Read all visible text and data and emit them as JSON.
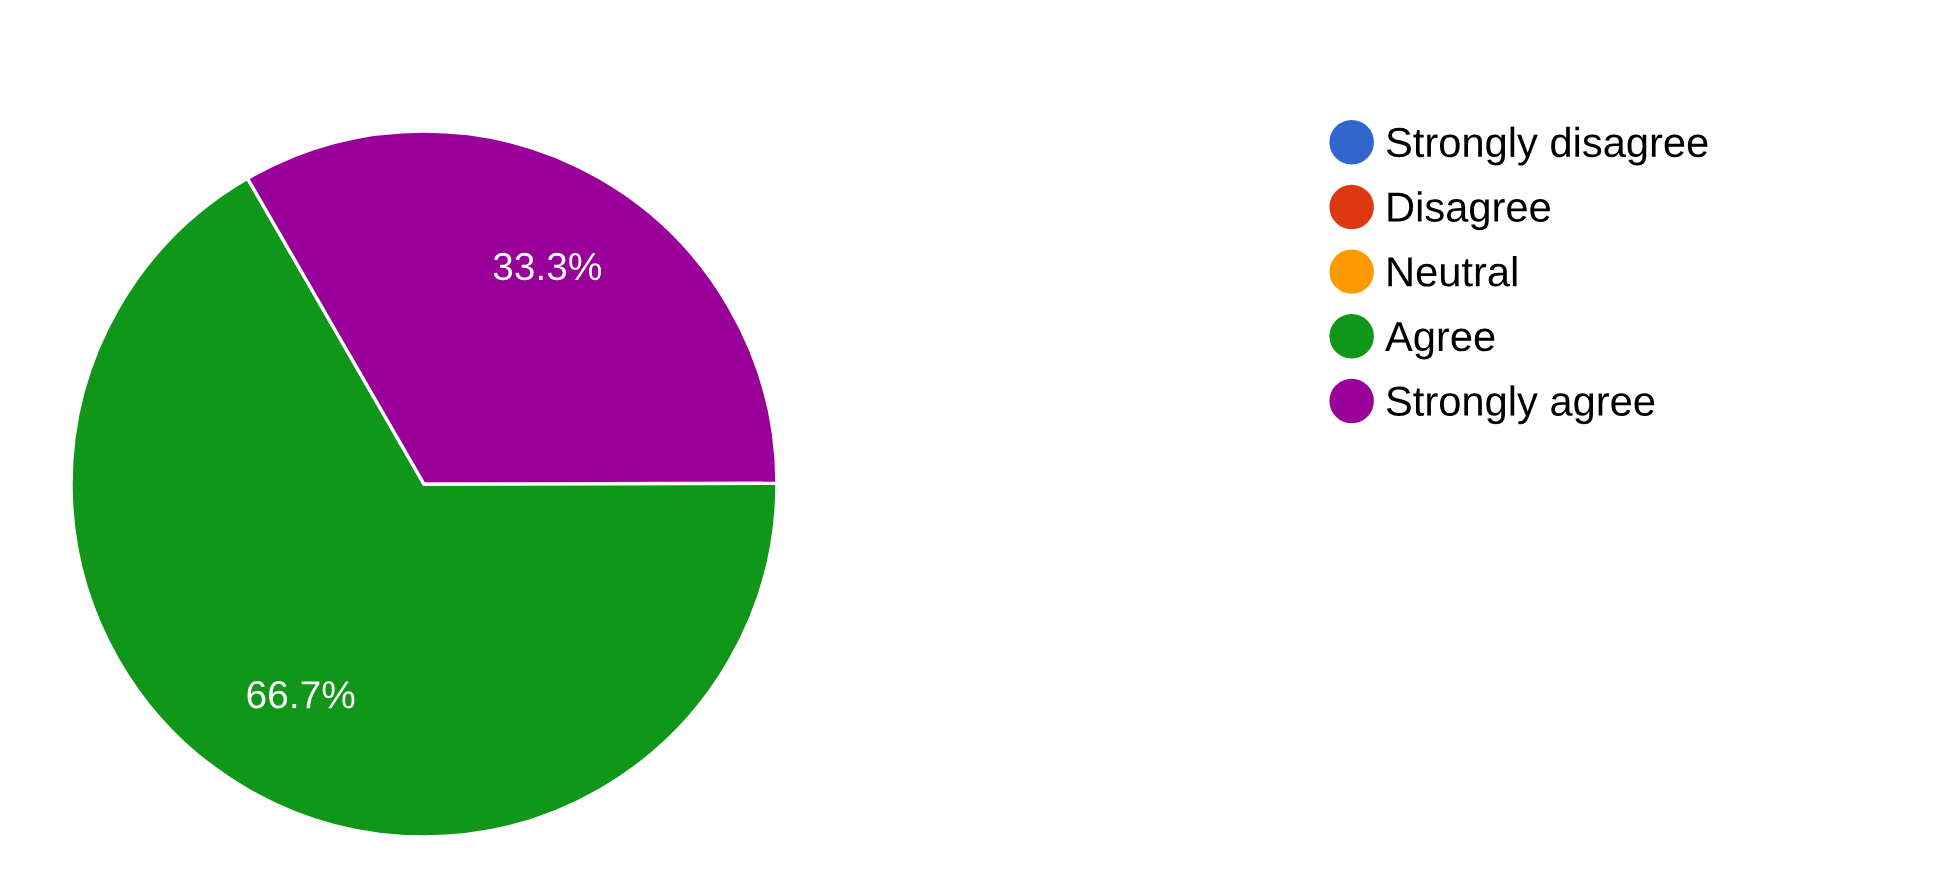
{
  "chart_data": {
    "type": "pie",
    "categories": [
      "Strongly disagree",
      "Disagree",
      "Neutral",
      "Agree",
      "Strongly agree"
    ],
    "values": [
      0,
      0,
      0,
      66.7,
      33.3
    ],
    "value_labels": [
      null,
      null,
      null,
      "66.7%",
      "33.3%"
    ],
    "colors": [
      "#3366cc",
      "#dc3912",
      "#ff9900",
      "#109618",
      "#990099"
    ],
    "legend": "right"
  }
}
